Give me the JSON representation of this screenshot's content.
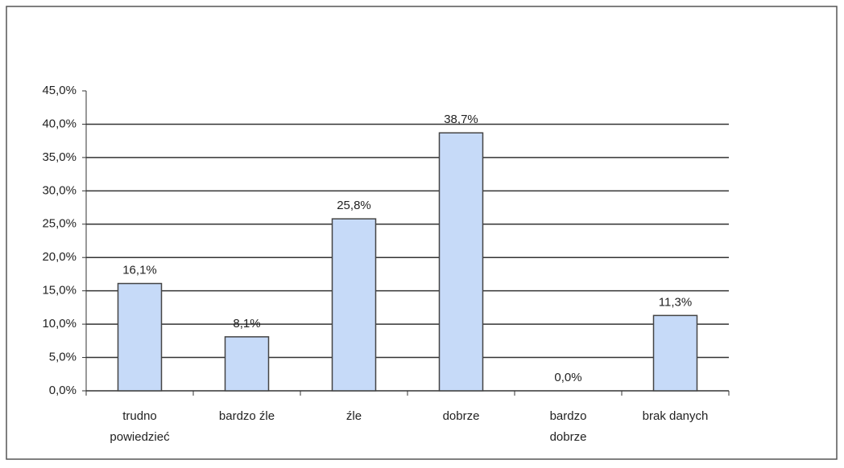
{
  "chart_data": {
    "type": "bar",
    "categories": [
      [
        "trudno",
        "powiedzieć"
      ],
      [
        "bardzo źle"
      ],
      [
        "źle"
      ],
      [
        "dobrze"
      ],
      [
        "bardzo",
        "dobrze"
      ],
      [
        "brak danych"
      ]
    ],
    "values": [
      16.1,
      8.1,
      25.8,
      38.7,
      0.0,
      11.3
    ],
    "value_labels": [
      "16,1%",
      "8,1%",
      "25,8%",
      "38,7%",
      "0,0%",
      "11,3%"
    ],
    "color": "#c6daf8",
    "ylim": [
      0,
      45
    ],
    "yticks": [
      {
        "value": 0,
        "label": "0,0%"
      },
      {
        "value": 5,
        "label": "5,0%"
      },
      {
        "value": 10,
        "label": "10,0%"
      },
      {
        "value": 15,
        "label": "15,0%"
      },
      {
        "value": 20,
        "label": "20,0%"
      },
      {
        "value": 25,
        "label": "25,0%"
      },
      {
        "value": 30,
        "label": "30,0%"
      },
      {
        "value": 35,
        "label": "35,0%"
      },
      {
        "value": 40,
        "label": "40,0%"
      },
      {
        "value": 45,
        "label": "45,0%"
      }
    ],
    "grid": true
  }
}
